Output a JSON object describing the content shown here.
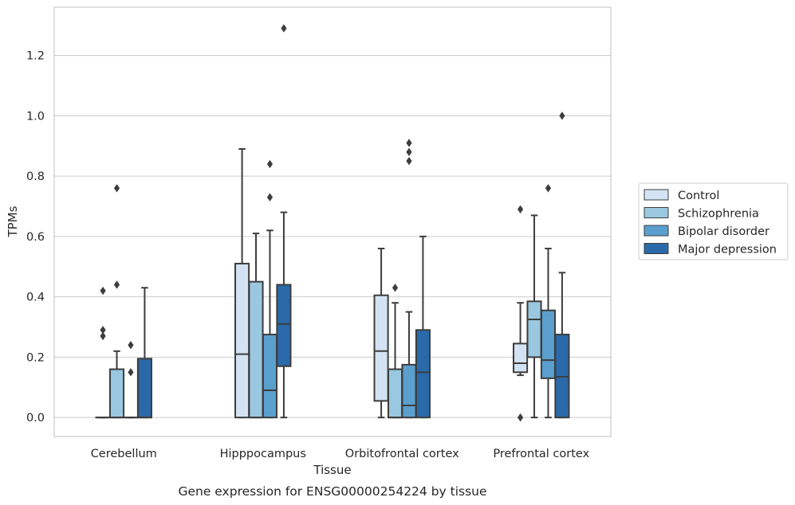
{
  "chart_data": {
    "type": "box",
    "title": "",
    "caption": "Gene expression for ENSG00000254224 by tissue",
    "xlabel": "Tissue",
    "ylabel": "TPMs",
    "ylim": [
      -0.063,
      1.36
    ],
    "yticks": [
      0.0,
      0.2,
      0.4,
      0.6,
      0.8,
      1.0,
      1.2
    ],
    "ytick_labels": [
      "0.0",
      "0.2",
      "0.4",
      "0.6",
      "0.8",
      "1.0",
      "1.2"
    ],
    "grid": "horizontal",
    "legend_placement": "right",
    "categories": [
      "Cerebellum",
      "Hipppocampus",
      "Orbitofrontal cortex",
      "Prefrontal cortex"
    ],
    "series": [
      {
        "name": "Control",
        "color": "#d3e3f3",
        "boxes": [
          {
            "whislo": 0.0,
            "q1": 0.0,
            "med": 0.0,
            "q3": 0.0,
            "whishi": 0.0,
            "fliers": [
              0.42,
              0.29,
              0.27
            ]
          },
          {
            "whislo": 0.0,
            "q1": 0.0,
            "med": 0.21,
            "q3": 0.51,
            "whishi": 0.89,
            "fliers": []
          },
          {
            "whislo": 0.0,
            "q1": 0.055,
            "med": 0.22,
            "q3": 0.405,
            "whishi": 0.56,
            "fliers": []
          },
          {
            "whislo": 0.14,
            "q1": 0.15,
            "med": 0.18,
            "q3": 0.245,
            "whishi": 0.38,
            "fliers": [
              0.69,
              0.0
            ]
          }
        ]
      },
      {
        "name": "Schizophrenia",
        "color": "#9ac8e0",
        "boxes": [
          {
            "whislo": 0.0,
            "q1": 0.0,
            "med": 0.0,
            "q3": 0.16,
            "whishi": 0.22,
            "fliers": [
              0.76,
              0.44
            ]
          },
          {
            "whislo": 0.0,
            "q1": 0.0,
            "med": 0.0,
            "q3": 0.45,
            "whishi": 0.61,
            "fliers": []
          },
          {
            "whislo": 0.0,
            "q1": 0.0,
            "med": 0.0,
            "q3": 0.16,
            "whishi": 0.38,
            "fliers": [
              0.43
            ]
          },
          {
            "whislo": 0.0,
            "q1": 0.2,
            "med": 0.325,
            "q3": 0.385,
            "whishi": 0.67,
            "fliers": []
          }
        ]
      },
      {
        "name": "Bipolar disorder",
        "color": "#5a9fcd",
        "boxes": [
          {
            "whislo": 0.0,
            "q1": 0.0,
            "med": 0.0,
            "q3": 0.0,
            "whishi": 0.0,
            "fliers": [
              0.24,
              0.15
            ]
          },
          {
            "whislo": 0.0,
            "q1": 0.0,
            "med": 0.09,
            "q3": 0.275,
            "whishi": 0.62,
            "fliers": [
              0.84,
              0.73
            ]
          },
          {
            "whislo": 0.0,
            "q1": 0.0,
            "med": 0.04,
            "q3": 0.175,
            "whishi": 0.35,
            "fliers": [
              0.91,
              0.88,
              0.85
            ]
          },
          {
            "whislo": 0.0,
            "q1": 0.13,
            "med": 0.19,
            "q3": 0.355,
            "whishi": 0.56,
            "fliers": [
              0.76
            ]
          }
        ]
      },
      {
        "name": "Major depression",
        "color": "#2a6aaa",
        "boxes": [
          {
            "whislo": 0.0,
            "q1": 0.0,
            "med": 0.0,
            "q3": 0.195,
            "whishi": 0.43,
            "fliers": []
          },
          {
            "whislo": 0.0,
            "q1": 0.17,
            "med": 0.31,
            "q3": 0.44,
            "whishi": 0.68,
            "fliers": [
              1.29
            ]
          },
          {
            "whislo": 0.0,
            "q1": 0.0,
            "med": 0.15,
            "q3": 0.29,
            "whishi": 0.6,
            "fliers": []
          },
          {
            "whislo": 0.0,
            "q1": 0.0,
            "med": 0.135,
            "q3": 0.275,
            "whishi": 0.48,
            "fliers": [
              1.0
            ]
          }
        ]
      }
    ]
  }
}
